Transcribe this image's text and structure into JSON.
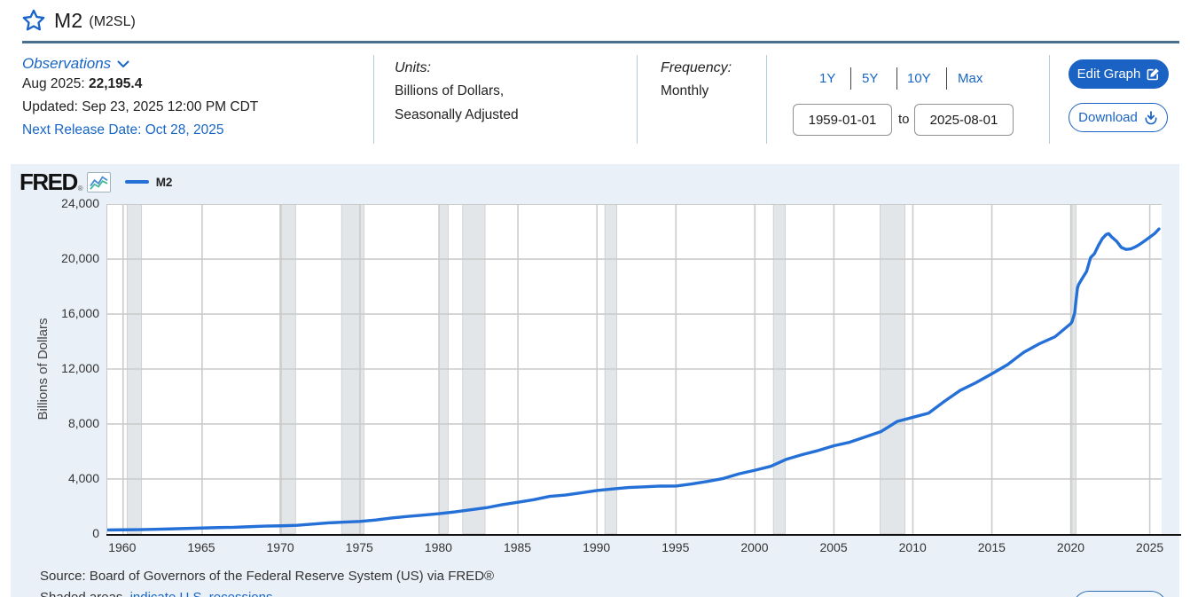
{
  "page": {
    "title": "M2",
    "series_id": "(M2SL)"
  },
  "info_bar": {
    "observations": {
      "label": "Observations",
      "latest_date": "Aug 2025: ",
      "latest_value": "22,195.4",
      "updated": "Updated: Sep 23, 2025 12:00 PM CDT",
      "next_release": "Next Release Date: Oct 28, 2025"
    },
    "units": {
      "label": "Units:",
      "line1": "Billions of Dollars,",
      "line2": "Seasonally Adjusted"
    },
    "frequency": {
      "label": "Frequency:",
      "value": "Monthly"
    },
    "range": {
      "presets": [
        "1Y",
        "5Y",
        "10Y",
        "Max"
      ],
      "start_date": "1959-01-01",
      "to_label": "to",
      "end_date": "2025-08-01"
    },
    "actions": {
      "edit_graph": "Edit Graph",
      "download": "Download"
    }
  },
  "chart": {
    "brand": "FRED",
    "brand_mark": "®",
    "legend_label": "M2",
    "y_axis_title": "Billions of Dollars",
    "source": "Source: Board of Governors of the Federal Reserve System (US) via FRED®",
    "footnote_plain": "Shaded areas",
    "footnote_link": "indicate U.S. recessions."
  },
  "colors": {
    "accent": "#1866c5",
    "button_fill": "#1a63c4",
    "title_rule": "#47708e",
    "panel_bg": "#e9f0f8",
    "grid": "#cbcbcb",
    "recession": "#e3e6e9",
    "line": "#2470d7",
    "axis": "#111111"
  },
  "chart_data": {
    "type": "line",
    "title": "M2 (M2SL)",
    "xlabel": "",
    "ylabel": "Billions of Dollars",
    "legend_position": "top-left",
    "grid": true,
    "x_domain": [
      1959,
      2025.75
    ],
    "ylim": [
      0,
      24000
    ],
    "y_ticks": [
      0,
      4000,
      8000,
      12000,
      16000,
      20000,
      24000
    ],
    "x_ticks": [
      1960,
      1965,
      1970,
      1975,
      1980,
      1985,
      1990,
      1995,
      2000,
      2005,
      2010,
      2015,
      2020,
      2025
    ],
    "recessions": [
      [
        1960.25,
        1961.17
      ],
      [
        1969.92,
        1970.92
      ],
      [
        1973.83,
        1975.25
      ],
      [
        1980.0,
        1980.58
      ],
      [
        1981.5,
        1982.92
      ],
      [
        1990.5,
        1991.25
      ],
      [
        2001.17,
        2001.92
      ],
      [
        2007.92,
        2009.5
      ],
      [
        2020.08,
        2020.33
      ]
    ],
    "series": [
      {
        "name": "M2",
        "color": "#2470d7",
        "points": [
          [
            1959.0,
            287
          ],
          [
            1960,
            298
          ],
          [
            1961,
            312
          ],
          [
            1962,
            336
          ],
          [
            1963,
            363
          ],
          [
            1964,
            393
          ],
          [
            1965,
            425
          ],
          [
            1966,
            459
          ],
          [
            1967,
            480
          ],
          [
            1968,
            525
          ],
          [
            1969,
            567
          ],
          [
            1970,
            589
          ],
          [
            1971,
            627
          ],
          [
            1972,
            710
          ],
          [
            1973,
            802
          ],
          [
            1974,
            856
          ],
          [
            1975,
            902
          ],
          [
            1976,
            1016
          ],
          [
            1977,
            1152
          ],
          [
            1978,
            1270
          ],
          [
            1979,
            1366
          ],
          [
            1980,
            1474
          ],
          [
            1981,
            1600
          ],
          [
            1982,
            1756
          ],
          [
            1983,
            1906
          ],
          [
            1984,
            2124
          ],
          [
            1985,
            2306
          ],
          [
            1986,
            2492
          ],
          [
            1987,
            2728
          ],
          [
            1988,
            2826
          ],
          [
            1989,
            2988
          ],
          [
            1990,
            3153
          ],
          [
            1991,
            3272
          ],
          [
            1992,
            3372
          ],
          [
            1993,
            3424
          ],
          [
            1994,
            3475
          ],
          [
            1995,
            3486
          ],
          [
            1996,
            3630
          ],
          [
            1997,
            3818
          ],
          [
            1998,
            4032
          ],
          [
            1999,
            4374
          ],
          [
            2000,
            4632
          ],
          [
            2001,
            4917
          ],
          [
            2002,
            5430
          ],
          [
            2003,
            5770
          ],
          [
            2004,
            6066
          ],
          [
            2005,
            6412
          ],
          [
            2006,
            6669
          ],
          [
            2007,
            7058
          ],
          [
            2008,
            7458
          ],
          [
            2009,
            8181
          ],
          [
            2010,
            8483
          ],
          [
            2011,
            8790
          ],
          [
            2012,
            9649
          ],
          [
            2013,
            10442
          ],
          [
            2014,
            11004
          ],
          [
            2015,
            11650
          ],
          [
            2016,
            12321
          ],
          [
            2017,
            13199
          ],
          [
            2018,
            13833
          ],
          [
            2019,
            14350
          ],
          [
            2020.0,
            15308
          ],
          [
            2020.08,
            15452
          ],
          [
            2020.25,
            16082
          ],
          [
            2020.33,
            17023
          ],
          [
            2020.42,
            17900
          ],
          [
            2020.5,
            18160
          ],
          [
            2020.75,
            18650
          ],
          [
            2021.0,
            19100
          ],
          [
            2021.25,
            20110
          ],
          [
            2021.5,
            20400
          ],
          [
            2021.75,
            21000
          ],
          [
            2022.0,
            21500
          ],
          [
            2022.25,
            21800
          ],
          [
            2022.4,
            21850
          ],
          [
            2022.6,
            21600
          ],
          [
            2022.9,
            21300
          ],
          [
            2023.2,
            20850
          ],
          [
            2023.5,
            20700
          ],
          [
            2023.8,
            20750
          ],
          [
            2024.1,
            20900
          ],
          [
            2024.4,
            21100
          ],
          [
            2024.7,
            21350
          ],
          [
            2025.0,
            21600
          ],
          [
            2025.3,
            21850
          ],
          [
            2025.58,
            22195.4
          ]
        ]
      }
    ]
  }
}
